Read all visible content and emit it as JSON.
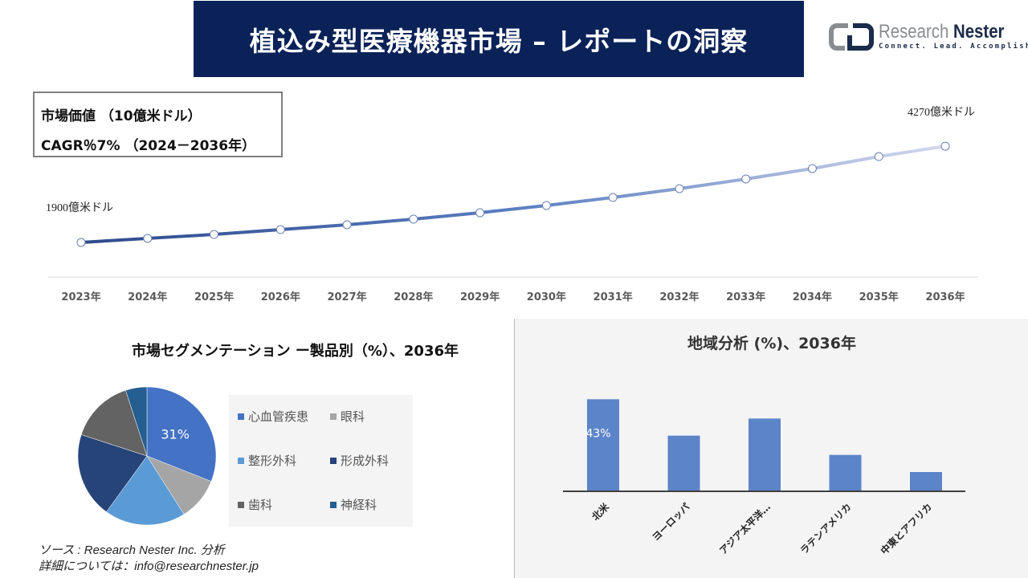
{
  "header": {
    "title": "植込み型医療機器市場 – レポートの洞察"
  },
  "logo": {
    "name_part1": "Research",
    "name_part2": "Nester",
    "tagline": "Connect. Lead. Accomplish"
  },
  "info_box": {
    "line1": "市場価値 （10億米ドル）",
    "line2": "CAGR％7% （2024－2036年）"
  },
  "colors": {
    "header_bg": "#0b2258",
    "line_start": "#2e4a8c",
    "line_end": "#d3d8ec",
    "bar": "#5b84c9"
  },
  "chart_data": [
    {
      "type": "line",
      "categories": [
        "2023年",
        "2024年",
        "2025年",
        "2026年",
        "2027年",
        "2028年",
        "2029年",
        "2030年",
        "2031年",
        "2032年",
        "2033年",
        "2034年",
        "2035年",
        "2036年"
      ],
      "values": [
        1900,
        2000,
        2097,
        2216,
        2335,
        2474,
        2632,
        2810,
        3007,
        3225,
        3462,
        3719,
        4015,
        4270
      ],
      "ylim": [
        1050,
        5300
      ],
      "annotations": {
        "start": "1900億米ドル",
        "end": "4270億米ドル"
      },
      "grid": false
    },
    {
      "type": "pie",
      "title": "市場セグメンテーション ー製品別（%）、2036年",
      "labels": [
        "心血管疾患",
        "眼科",
        "整形外科",
        "形成外科",
        "歯科",
        "神経科"
      ],
      "values": [
        31,
        10,
        19,
        20,
        15,
        5
      ],
      "colors": [
        "#4472c4",
        "#a5a5a5",
        "#5b9bd5",
        "#264478",
        "#636363",
        "#255e91"
      ],
      "data_labels": {
        "0": "31%"
      },
      "legend": "right"
    },
    {
      "type": "bar",
      "title": "地域分析 (%)、2036年",
      "categories": [
        "北米",
        "ヨーロッパ",
        "アジア太平洋…",
        "ラテンアメリカ",
        "中東とアフリカ"
      ],
      "values": [
        43,
        26,
        34,
        17,
        9
      ],
      "data_labels": {
        "0": "43%"
      },
      "ylim": [
        0,
        45
      ]
    }
  ],
  "footer": {
    "source": "ソース : Research Nester Inc. 分析",
    "contact": "詳細については：info@researchnester.jp"
  }
}
